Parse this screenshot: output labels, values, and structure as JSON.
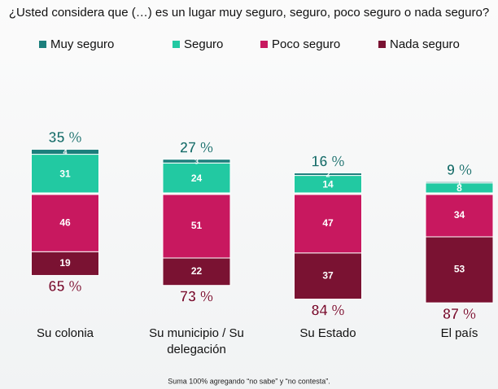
{
  "chart_data": {
    "type": "diverging-bar",
    "title": "¿Usted considera que (…) es un lugar muy seguro, seguro, poco seguro o nada seguro?",
    "categories": [
      "Su colonia",
      "Su municipio / Su delegación",
      "Su Estado",
      "El país"
    ],
    "series": [
      {
        "name": "Muy seguro",
        "color": "#1c7f7c",
        "values": [
          4,
          3,
          2,
          1
        ]
      },
      {
        "name": "Seguro",
        "color": "#22c9a2",
        "values": [
          31,
          24,
          14,
          8
        ]
      },
      {
        "name": "Poco seguro",
        "color": "#c8185f",
        "values": [
          46,
          51,
          47,
          34
        ]
      },
      {
        "name": "Nada seguro",
        "color": "#7a1232",
        "values": [
          19,
          22,
          37,
          53
        ]
      }
    ],
    "positive_totals": {
      "values": [
        35,
        27,
        16,
        9
      ],
      "value_labels": [
        "35 %",
        "27 %",
        "16 %",
        "9 %"
      ]
    },
    "negative_totals": {
      "values": [
        65,
        73,
        84,
        87
      ],
      "value_labels": [
        "65 %",
        "73 %",
        "84 %",
        "87 %"
      ]
    },
    "note": "Suma 100% agregando “no sabe” y “no contesta”."
  }
}
